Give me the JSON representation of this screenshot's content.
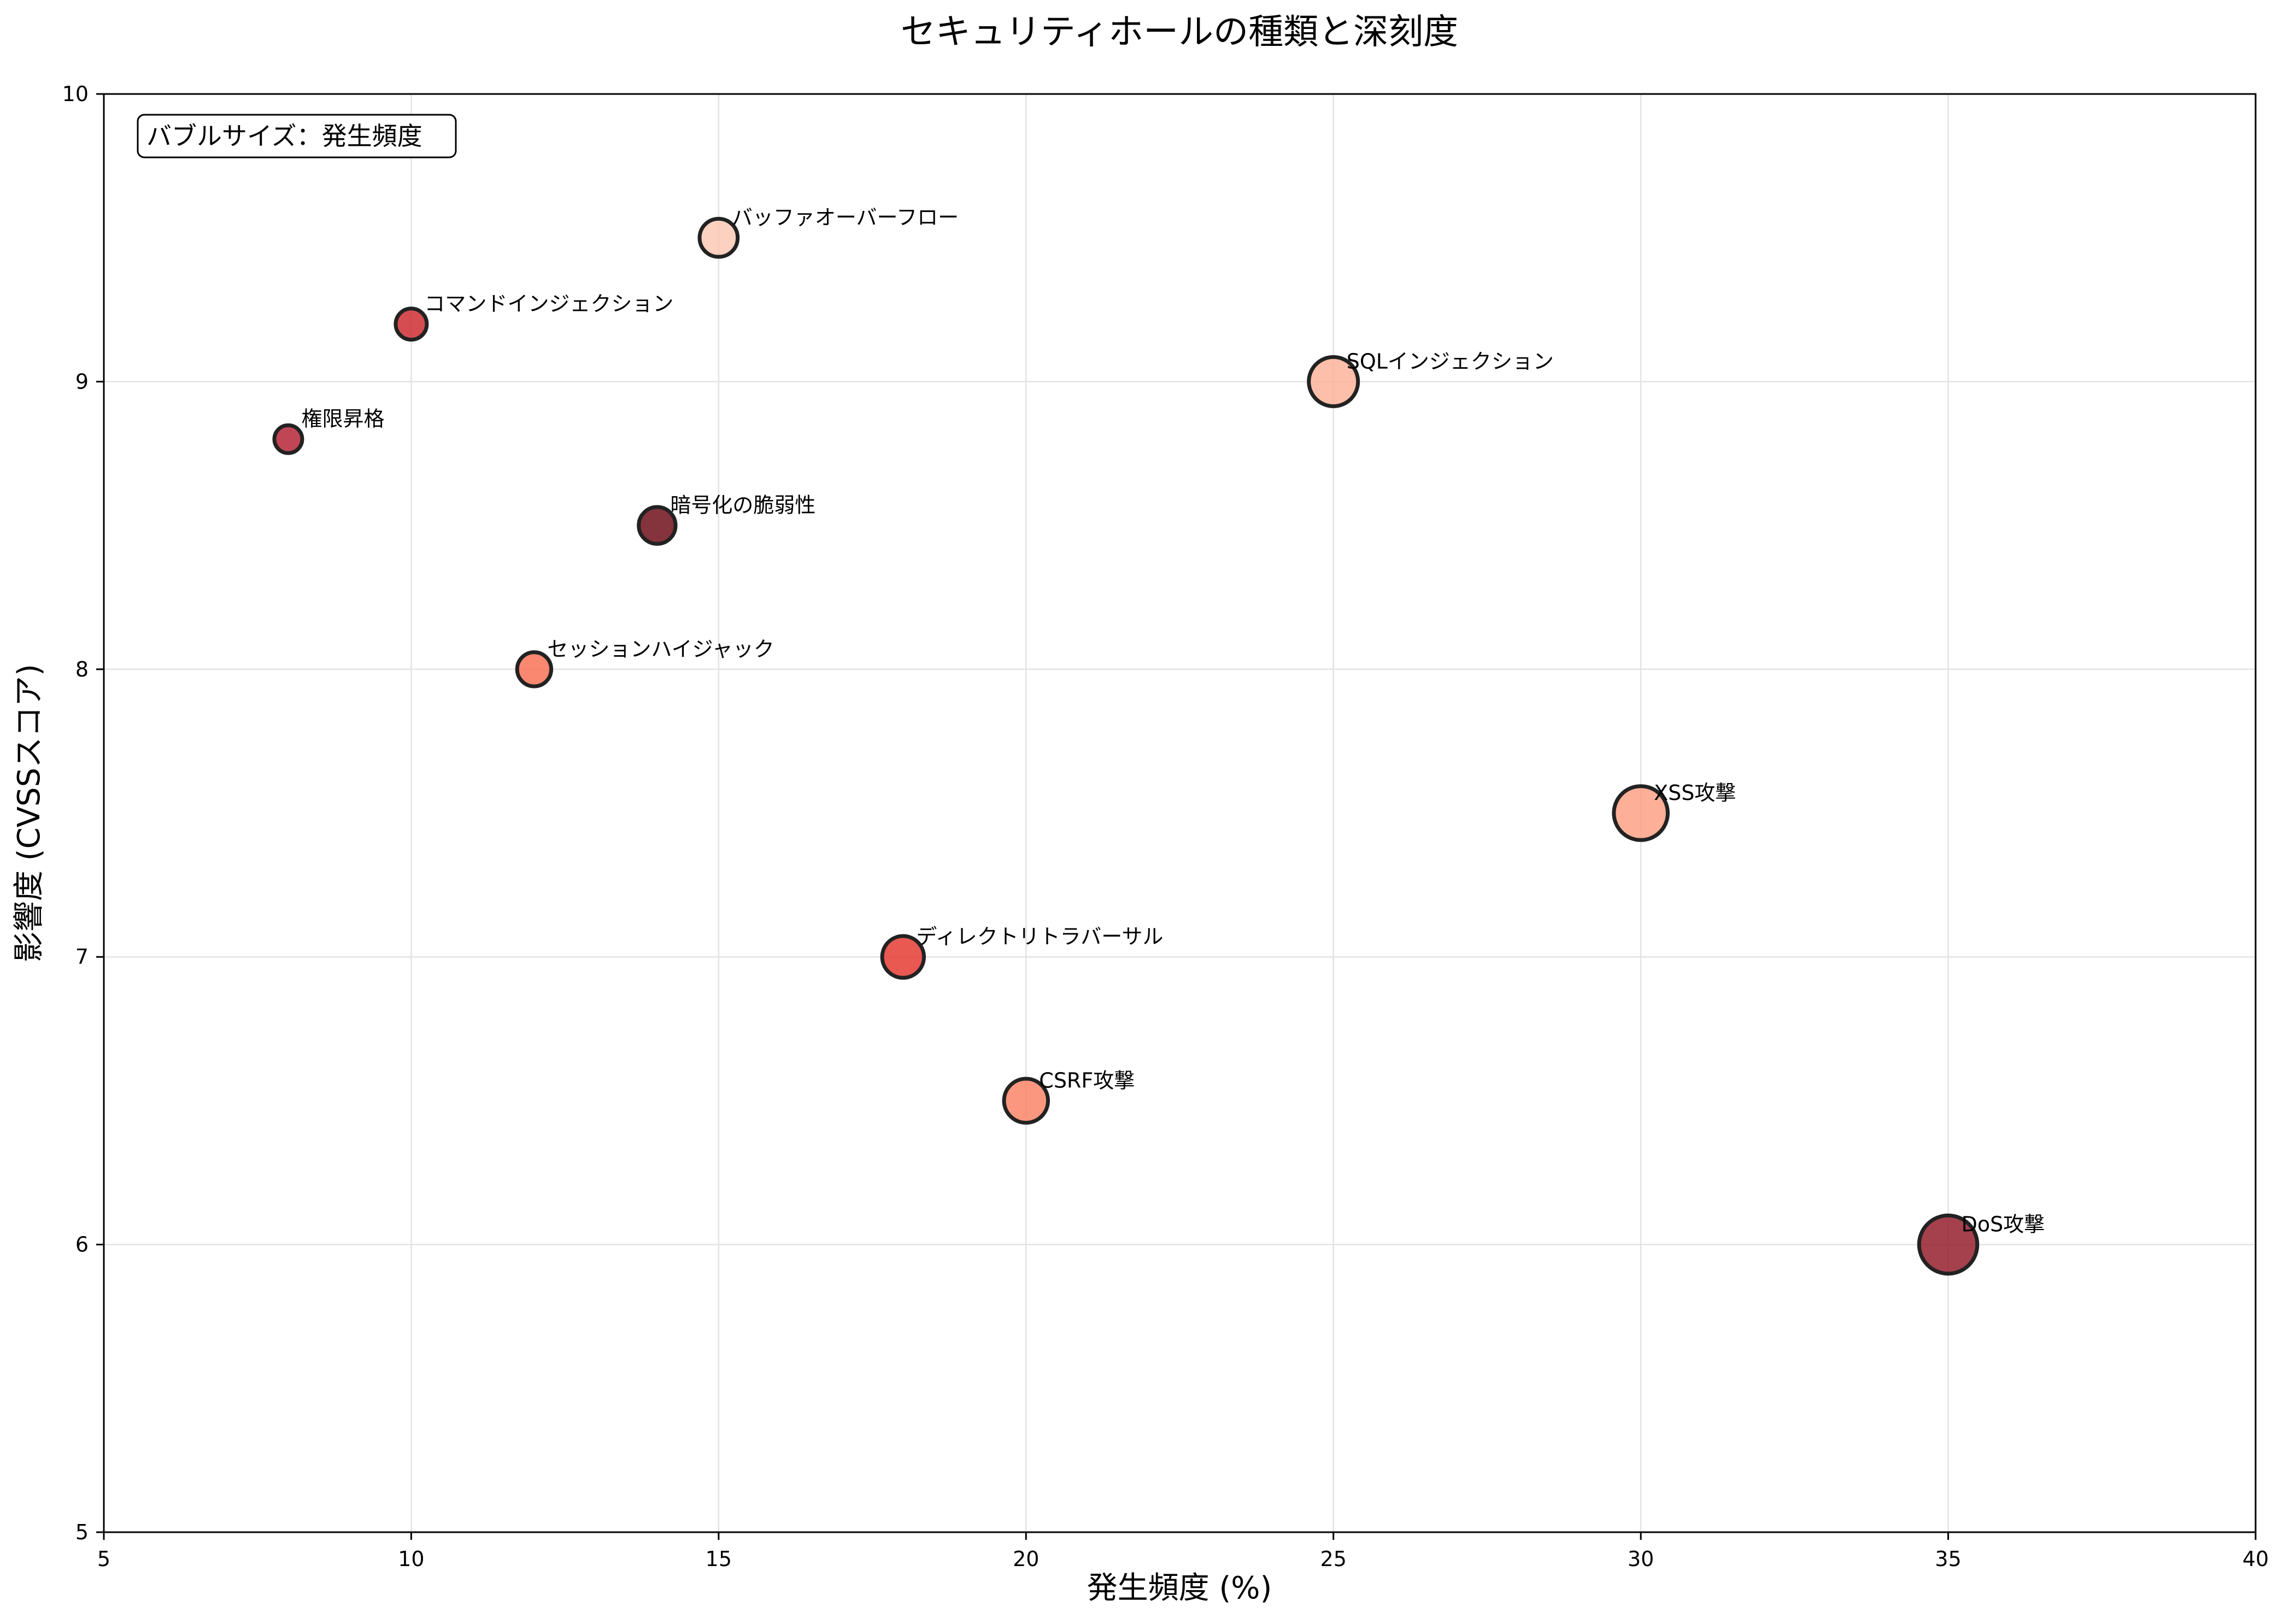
{
  "chart_data": {
    "type": "scatter",
    "title": "セキュリティホールの種類と深刻度",
    "xlabel": "発生頻度 (%)",
    "ylabel": "影響度 (CVSSスコア)",
    "xlim": [
      5,
      40
    ],
    "ylim": [
      5,
      10
    ],
    "xticks": [
      5,
      10,
      15,
      20,
      25,
      30,
      35,
      40
    ],
    "yticks": [
      5,
      6,
      7,
      8,
      9,
      10
    ],
    "grid": true,
    "annotation": "バブルサイズ：発生頻度",
    "bubble_size_encodes": "発生頻度",
    "points": [
      {
        "label": "SQLインジェクション",
        "x": 25,
        "y": 9.0,
        "color": "#fcaf93"
      },
      {
        "label": "XSS攻撃",
        "x": 30,
        "y": 7.5,
        "color": "#fc9c7d"
      },
      {
        "label": "CSRF攻撃",
        "x": 20,
        "y": 6.5,
        "color": "#fb7d5f"
      },
      {
        "label": "バッファオーバーフロー",
        "x": 15,
        "y": 9.5,
        "color": "#fdc6b0"
      },
      {
        "label": "権限昇格",
        "x": 8,
        "y": 8.8,
        "color": "#b2182b"
      },
      {
        "label": "DoS攻撃",
        "x": 35,
        "y": 6.0,
        "color": "#8f1220"
      },
      {
        "label": "セッションハイジャック",
        "x": 12,
        "y": 8.0,
        "color": "#f96a4d"
      },
      {
        "label": "コマンドインジェクション",
        "x": 10,
        "y": 9.2,
        "color": "#cb2026"
      },
      {
        "label": "ディレクトリトラバーサル",
        "x": 18,
        "y": 7.0,
        "color": "#e32f27"
      },
      {
        "label": "暗号化の脆弱性",
        "x": 14,
        "y": 8.5,
        "color": "#67000d"
      }
    ]
  }
}
